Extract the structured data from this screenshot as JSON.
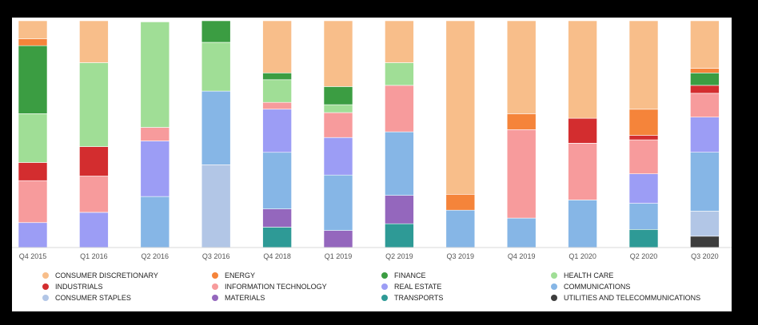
{
  "chart_data": {
    "type": "bar",
    "stacked": true,
    "normalized": true,
    "ylim": [
      0,
      100
    ],
    "categories": [
      "Q4 2015",
      "Q1 2016",
      "Q2 2016",
      "Q3 2016",
      "Q4 2018",
      "Q1 2019",
      "Q2 2019",
      "Q3 2019",
      "Q4 2019",
      "Q1 2020",
      "Q2 2020",
      "Q3 2020"
    ],
    "series": [
      {
        "name": "UTILITIES AND TELECOMMUNICATIONS",
        "color": "#3d3d3d",
        "values": [
          0,
          0,
          0,
          0,
          0,
          0,
          0,
          0,
          0,
          0,
          0,
          5
        ]
      },
      {
        "name": "TRANSPORTS",
        "color": "#2e9a96",
        "values": [
          0,
          0,
          0,
          0,
          9,
          0,
          10.5,
          0,
          0,
          0,
          8,
          0
        ]
      },
      {
        "name": "MATERIALS",
        "color": "#9467bd",
        "values": [
          0,
          0,
          0,
          0,
          8,
          7.5,
          12.5,
          0,
          0,
          0,
          0,
          0
        ]
      },
      {
        "name": "CONSUMER STAPLES",
        "color": "#b2c6e6",
        "values": [
          0,
          0,
          0,
          36.5,
          0,
          0,
          0,
          0,
          0,
          0,
          0,
          11
        ]
      },
      {
        "name": "COMMUNICATIONS",
        "color": "#86b6e6",
        "values": [
          0,
          0,
          22.5,
          32.5,
          25,
          24.5,
          28,
          16.5,
          13,
          21,
          11.5,
          26
        ]
      },
      {
        "name": "REAL ESTATE",
        "color": "#9c9df5",
        "values": [
          11,
          15.5,
          24.5,
          0,
          19,
          16.5,
          0,
          0,
          0,
          0,
          13,
          15.5
        ]
      },
      {
        "name": "INFORMATION TECHNOLOGY",
        "color": "#f79b9c",
        "values": [
          18.5,
          16,
          6,
          0,
          3,
          11,
          20.5,
          0,
          39,
          25,
          15,
          10.5
        ]
      },
      {
        "name": "INDUSTRIALS",
        "color": "#d32d2f",
        "values": [
          8,
          13,
          0,
          0,
          0,
          0,
          0,
          0,
          0,
          11,
          2,
          3.5
        ]
      },
      {
        "name": "HEALTH CARE",
        "color": "#a0de96",
        "values": [
          21.5,
          37,
          46.5,
          21.5,
          10,
          3.5,
          10,
          0,
          0,
          0,
          0,
          0
        ]
      },
      {
        "name": "FINANCE",
        "color": "#3b9d42",
        "values": [
          30,
          0,
          0,
          9.5,
          3,
          8,
          0,
          0,
          0,
          0,
          0,
          5.5
        ]
      },
      {
        "name": "ENERGY",
        "color": "#f5843a",
        "values": [
          3,
          0,
          0,
          0,
          0,
          0,
          0,
          7,
          7,
          0,
          11.5,
          2
        ]
      },
      {
        "name": "CONSUMER DISCRETIONARY",
        "color": "#f8be8a",
        "values": [
          8,
          18.5,
          0,
          0,
          23,
          29,
          18.5,
          76.5,
          41,
          43,
          39,
          21
        ]
      }
    ],
    "legend_order": [
      "CONSUMER DISCRETIONARY",
      "ENERGY",
      "FINANCE",
      "HEALTH CARE",
      "INDUSTRIALS",
      "INFORMATION TECHNOLOGY",
      "REAL ESTATE",
      "COMMUNICATIONS",
      "CONSUMER STAPLES",
      "MATERIALS",
      "TRANSPORTS",
      "UTILITIES AND TELECOMMUNICATIONS"
    ],
    "legend_position": "bottom",
    "grid": false,
    "title": "",
    "xlabel": "",
    "ylabel": ""
  }
}
